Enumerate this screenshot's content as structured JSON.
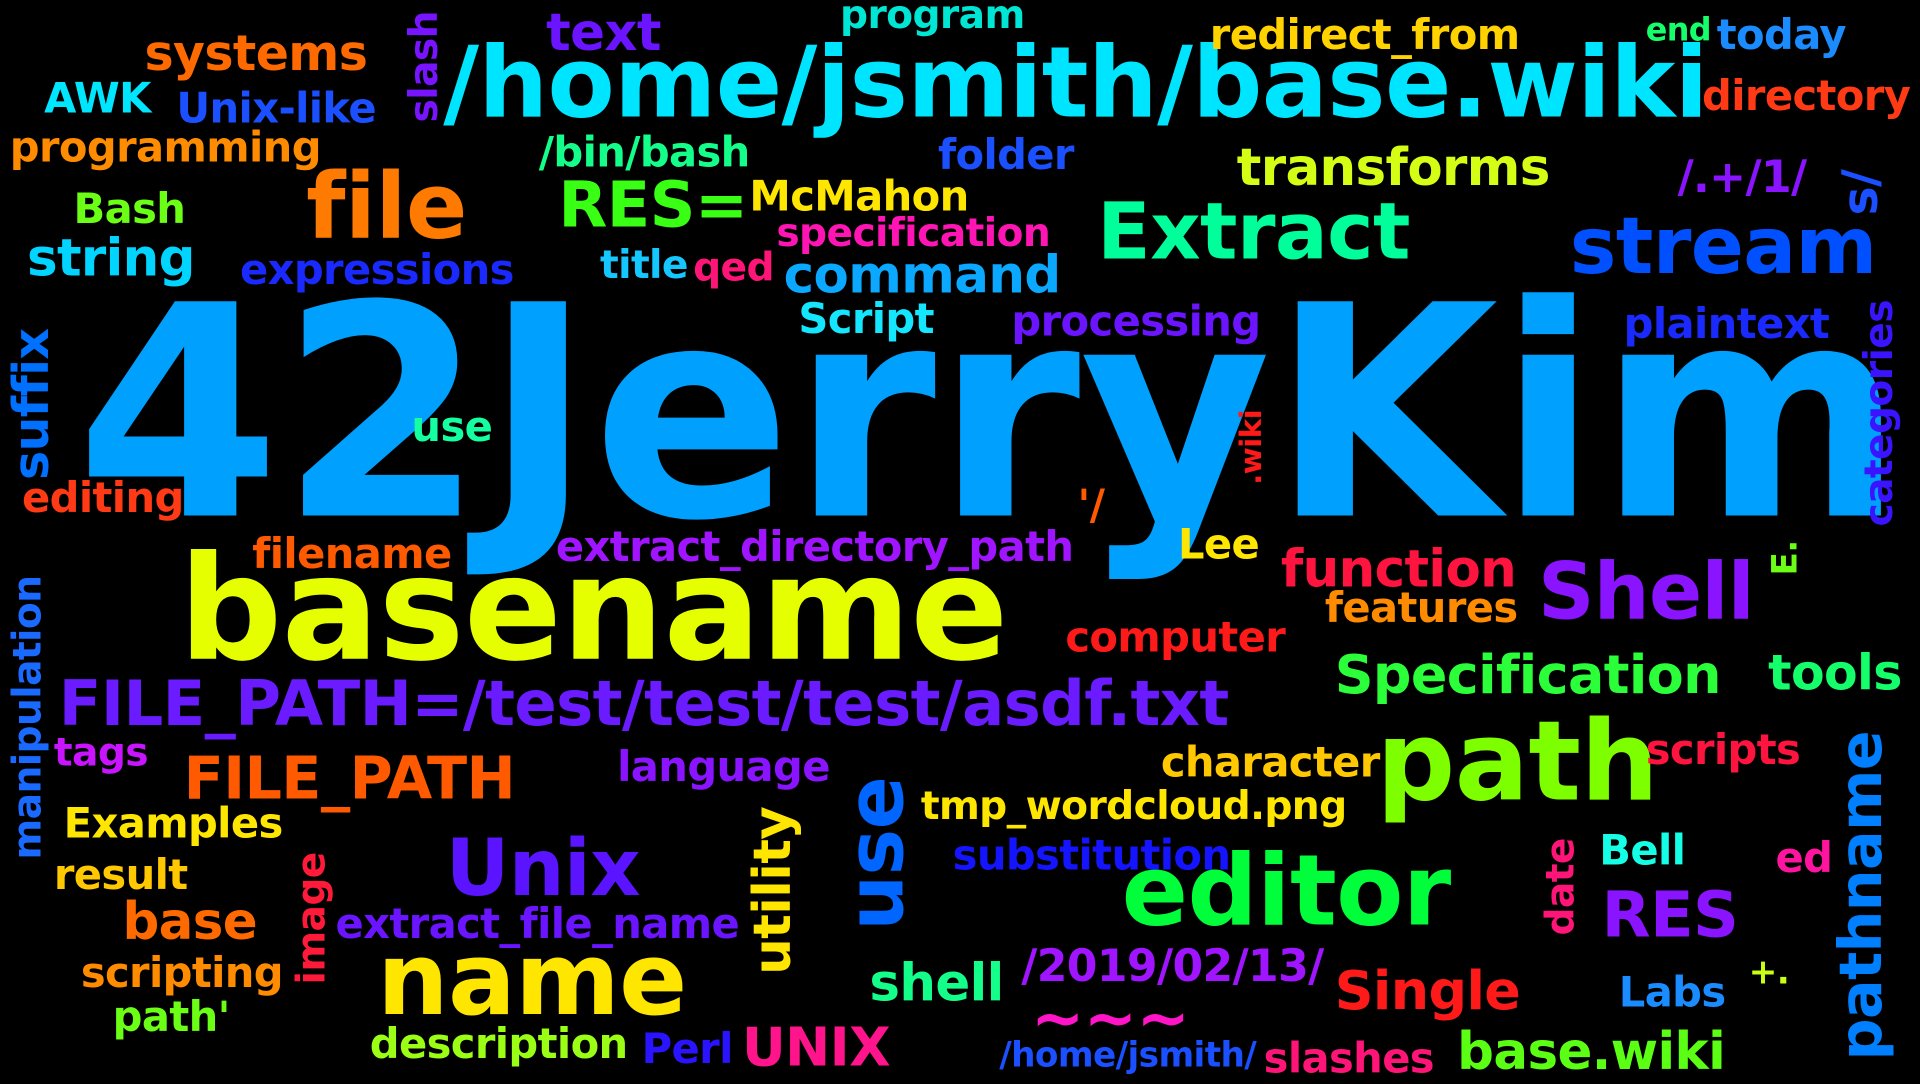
{
  "words": [
    {
      "id": "w-42jerrykim",
      "text": "42JerryKim",
      "color": "#00a0ff"
    },
    {
      "id": "w-home-jsmith-base-wiki",
      "text": "/home/jsmith/base.wiki",
      "color": "#00e5ff"
    },
    {
      "id": "w-basename",
      "text": "basename",
      "color": "#e6ff00"
    },
    {
      "id": "w-file-path-assign",
      "text": "FILE_PATH=/test/test/test/asdf.txt",
      "color": "#6a1bff"
    },
    {
      "id": "w-path",
      "text": "path",
      "color": "#7dff00"
    },
    {
      "id": "w-editor",
      "text": "editor",
      "color": "#00ff3a"
    },
    {
      "id": "w-name",
      "text": "name",
      "color": "#ffe600"
    },
    {
      "id": "w-file",
      "text": "file",
      "color": "#ff7a00"
    },
    {
      "id": "w-stream",
      "text": "stream",
      "color": "#0050ff"
    },
    {
      "id": "w-extract",
      "text": "Extract",
      "color": "#00ff9a"
    },
    {
      "id": "w-unix",
      "text": "Unix",
      "color": "#5a14ff"
    },
    {
      "id": "w-shell-cap",
      "text": "Shell",
      "color": "#8a14ff"
    },
    {
      "id": "w-use-vertical",
      "text": "use",
      "color": "#0066ff"
    },
    {
      "id": "w-pathname",
      "text": "pathname",
      "color": "#0080ff"
    },
    {
      "id": "w-file-path",
      "text": "FILE_PATH",
      "color": "#ff5a00"
    },
    {
      "id": "w-specification-cap",
      "text": "Specification",
      "color": "#2aff3a"
    },
    {
      "id": "w-res-assign",
      "text": "RES=",
      "color": "#38ff14"
    },
    {
      "id": "w-transforms",
      "text": "transforms",
      "color": "#d4ff14"
    },
    {
      "id": "w-command",
      "text": "command",
      "color": "#0aa8ff"
    },
    {
      "id": "w-systems",
      "text": "systems",
      "color": "#ff6a00"
    },
    {
      "id": "w-text",
      "text": "text",
      "color": "#6a14ff"
    },
    {
      "id": "w-function",
      "text": "function",
      "color": "#ff1440"
    },
    {
      "id": "w-res",
      "text": "RES",
      "color": "#8a14ff"
    },
    {
      "id": "w-single",
      "text": "Single",
      "color": "#ff1a1a"
    },
    {
      "id": "w-tilde",
      "text": "~~~",
      "color": "#ff14c8"
    },
    {
      "id": "w-shell",
      "text": "shell",
      "color": "#14ff8a"
    },
    {
      "id": "w-base-wiki",
      "text": "base.wiki",
      "color": "#5aff14"
    },
    {
      "id": "w-tools",
      "text": "tools",
      "color": "#14ff6a"
    },
    {
      "id": "w-base",
      "text": "base",
      "color": "#ff6a00"
    },
    {
      "id": "w-unix-upper",
      "text": "UNIX",
      "color": "#ff148c"
    },
    {
      "id": "w-utility",
      "text": "utility",
      "color": "#ffe600"
    },
    {
      "id": "w-string",
      "text": "string",
      "color": "#00d4ff"
    },
    {
      "id": "w-suffix",
      "text": "suffix",
      "color": "#0070ff"
    },
    {
      "id": "w-date-path",
      "text": "/2019/02/13/",
      "color": "#a014ff"
    },
    {
      "id": "w-extract-directory-path",
      "text": "extract_directory_path",
      "color": "#a014ff"
    },
    {
      "id": "w-extract-file-name",
      "text": "extract_file_name",
      "color": "#6a14ff"
    },
    {
      "id": "w-tmp-wordcloud",
      "text": "tmp_wordcloud.png",
      "color": "#ffe600"
    },
    {
      "id": "w-substitution",
      "text": "substitution",
      "color": "#1414ff"
    },
    {
      "id": "w-character",
      "text": "character",
      "color": "#ffc800"
    },
    {
      "id": "w-expressions",
      "text": "expressions",
      "color": "#1a2aff"
    },
    {
      "id": "w-specification",
      "text": "specification",
      "color": "#ff14b4"
    },
    {
      "id": "w-mcmahon",
      "text": "McMahon",
      "color": "#ffe600"
    },
    {
      "id": "w-processing",
      "text": "processing",
      "color": "#6a14ff"
    },
    {
      "id": "w-plaintext",
      "text": "plaintext",
      "color": "#1a2aff"
    },
    {
      "id": "w-redirect-from",
      "text": "redirect_from",
      "color": "#ffd200"
    },
    {
      "id": "w-program",
      "text": "program",
      "color": "#00e6d4"
    },
    {
      "id": "w-programming",
      "text": "programming",
      "color": "#ff8c00"
    },
    {
      "id": "w-unix-like",
      "text": "Unix-like",
      "color": "#1a50ff"
    },
    {
      "id": "w-awk",
      "text": "AWK",
      "color": "#00e6ff"
    },
    {
      "id": "w-slash",
      "text": "slash",
      "color": "#7814ff"
    },
    {
      "id": "w-bin-bash",
      "text": "/bin/bash",
      "color": "#14ff8a"
    },
    {
      "id": "w-folder",
      "text": "folder",
      "color": "#1a50ff"
    },
    {
      "id": "w-today",
      "text": "today",
      "color": "#1a8cff"
    },
    {
      "id": "w-end",
      "text": "end",
      "color": "#14ff6a"
    },
    {
      "id": "w-directory",
      "text": "directory",
      "color": "#ff3a14"
    },
    {
      "id": "w-regex",
      "text": "/.+/1/",
      "color": "#8a14ff"
    },
    {
      "id": "w-s-slash",
      "text": "s/",
      "color": "#1a50ff"
    },
    {
      "id": "w-bash",
      "text": "Bash",
      "color": "#6aff14"
    },
    {
      "id": "w-title",
      "text": "title",
      "color": "#14c8ff"
    },
    {
      "id": "w-qed",
      "text": "qed",
      "color": "#ff1478"
    },
    {
      "id": "w-script",
      "text": "Script",
      "color": "#14e6ff"
    },
    {
      "id": "w-categories",
      "text": "categories",
      "color": "#3a14ff"
    },
    {
      "id": "w-use",
      "text": "use",
      "color": "#14ffa0"
    },
    {
      "id": "w-dot-wiki",
      "text": ".wiki",
      "color": "#ff1a1a"
    },
    {
      "id": "w-quote-slash",
      "text": "'/",
      "color": "#ff5a00"
    },
    {
      "id": "w-editing",
      "text": "editing",
      "color": "#ff3a14"
    },
    {
      "id": "w-filename",
      "text": "filename",
      "color": "#ff5a00"
    },
    {
      "id": "w-lee",
      "text": "Lee",
      "color": "#ffe600"
    },
    {
      "id": "w-e",
      "text": "E.",
      "color": "#6aff14"
    },
    {
      "id": "w-features",
      "text": "features",
      "color": "#ff8c00"
    },
    {
      "id": "w-computer",
      "text": "computer",
      "color": "#ff1a1a"
    },
    {
      "id": "w-manipulation",
      "text": "manipulation",
      "color": "#1a6aff"
    },
    {
      "id": "w-tags",
      "text": "tags",
      "color": "#c814ff"
    },
    {
      "id": "w-language",
      "text": "language",
      "color": "#8a14ff"
    },
    {
      "id": "w-scripts",
      "text": "scripts",
      "color": "#ff1440"
    },
    {
      "id": "w-examples",
      "text": "Examples",
      "color": "#ffe600"
    },
    {
      "id": "w-result",
      "text": "result",
      "color": "#ffc800"
    },
    {
      "id": "w-image",
      "text": "image",
      "color": "#ff1a3a"
    },
    {
      "id": "w-date",
      "text": "date",
      "color": "#ff1478"
    },
    {
      "id": "w-bell",
      "text": "Bell",
      "color": "#14ffe6"
    },
    {
      "id": "w-ed",
      "text": "ed",
      "color": "#ff14a0"
    },
    {
      "id": "w-scripting",
      "text": "scripting",
      "color": "#ff8c00"
    },
    {
      "id": "w-path-quote",
      "text": "path'",
      "color": "#6aff14"
    },
    {
      "id": "w-plus",
      "text": "+.",
      "color": "#c8ff14"
    },
    {
      "id": "w-labs",
      "text": "Labs",
      "color": "#1a8cff"
    },
    {
      "id": "w-description",
      "text": "description",
      "color": "#9aff14"
    },
    {
      "id": "w-perl",
      "text": "Perl",
      "color": "#2a14ff"
    },
    {
      "id": "w-home-jsmith",
      "text": "/home/jsmith/",
      "color": "#1a50ff"
    },
    {
      "id": "w-slashes",
      "text": "slashes",
      "color": "#ff1478"
    }
  ]
}
